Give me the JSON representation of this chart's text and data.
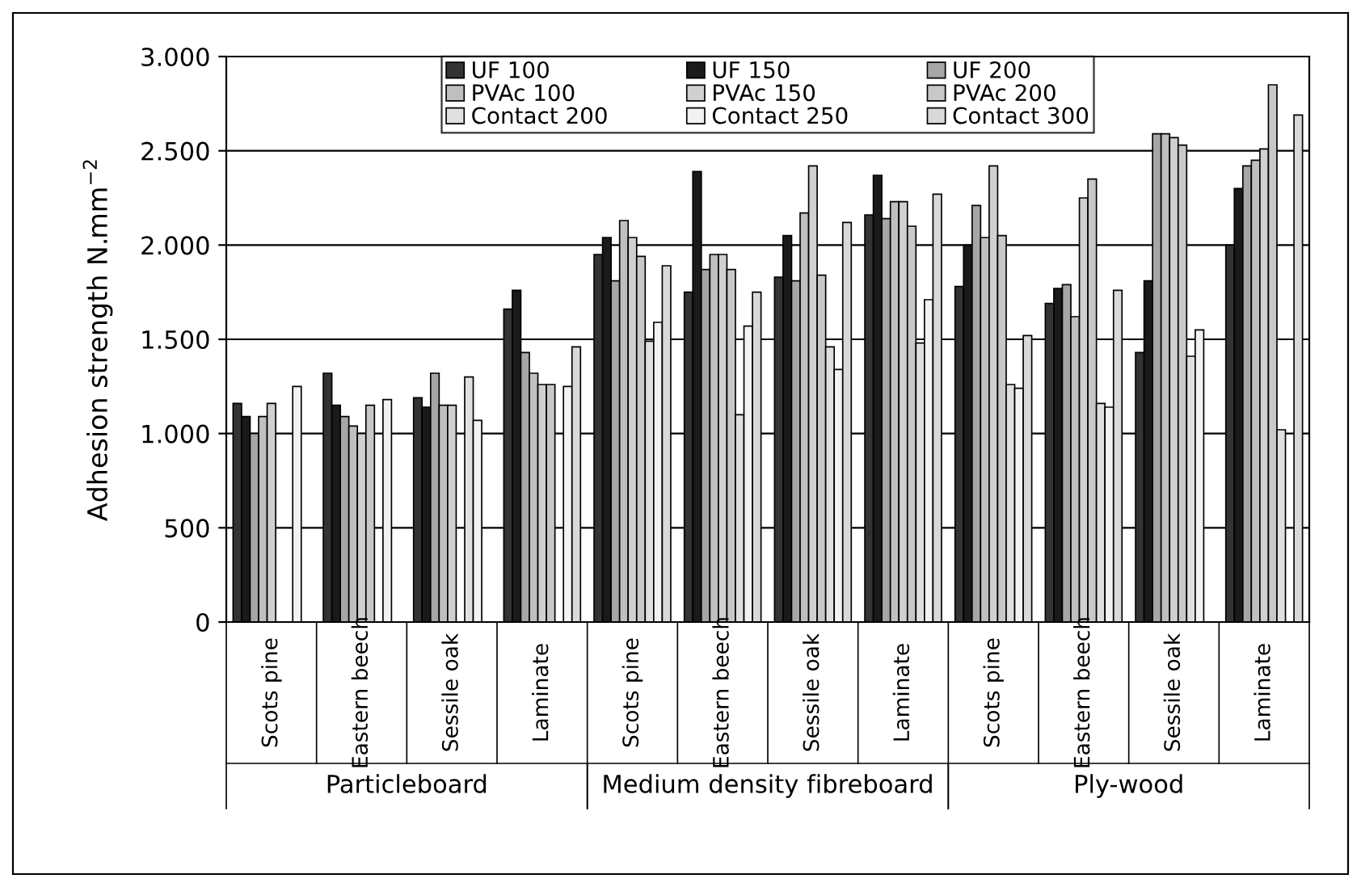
{
  "chart_data": {
    "type": "bar",
    "ylabel": "Adhesion strength N.mm$^{−2}$",
    "categories": [
      "Scots pine",
      "Eastern beech",
      "Sessile oak",
      "Laminate",
      "Scots pine",
      "Eastern beech",
      "Sessile oak",
      "Laminate",
      "Scots pine",
      "Eastern beech",
      "Sessile oak",
      "Laminate"
    ],
    "series": [
      {
        "name": "UF 100",
        "color": "#333333",
        "values": [
          1160,
          1320,
          1190,
          1660,
          1950,
          1750,
          1830,
          2160,
          1780,
          1690,
          1430,
          2000
        ]
      },
      {
        "name": "UF 150",
        "color": "#1a1a1a",
        "values": [
          1090,
          1150,
          1140,
          1760,
          2040,
          2390,
          2050,
          2370,
          2000,
          1770,
          1810,
          2300
        ]
      },
      {
        "name": "UF 200",
        "color": "#a6a6a6",
        "values": [
          1000,
          1090,
          1320,
          1430,
          1810,
          1870,
          1810,
          2140,
          2210,
          1790,
          2590,
          2420
        ]
      },
      {
        "name": "PVAc 100",
        "color": "#bfbfbf",
        "values": [
          1090,
          1040,
          1150,
          1320,
          2130,
          1950,
          2170,
          2230,
          2040,
          1620,
          2590,
          2450
        ]
      },
      {
        "name": "PVAc 150",
        "color": "#d0d0d0",
        "values": [
          1160,
          1000,
          1150,
          1260,
          2040,
          1950,
          2420,
          2230,
          2420,
          2250,
          2570,
          2510
        ]
      },
      {
        "name": "PVAc 200",
        "color": "#c8c8c8",
        "values": [
          null,
          1150,
          null,
          1260,
          1940,
          1870,
          1840,
          2100,
          2050,
          2350,
          2530,
          2850
        ]
      },
      {
        "name": "Contact 200",
        "color": "#e0e0e0",
        "values": [
          null,
          null,
          1300,
          null,
          1490,
          1100,
          1460,
          1480,
          1260,
          1160,
          1410,
          1020
        ]
      },
      {
        "name": "Contact 250",
        "color": "#f2f2f2",
        "values": [
          1250,
          1180,
          1070,
          1250,
          1590,
          1570,
          1340,
          1710,
          1240,
          1140,
          1550,
          null
        ]
      },
      {
        "name": "Contact 300",
        "color": "#d9d9d9",
        "values": [
          null,
          null,
          null,
          1460,
          1890,
          1750,
          2120,
          2270,
          1520,
          1760,
          null,
          2690
        ]
      }
    ],
    "ylim": [
      0,
      3000
    ],
    "yticks": [
      0,
      {
        "value": 500,
        "label": "500"
      },
      {
        "value": 1000,
        "label": "1.000"
      },
      {
        "value": 1500,
        "label": "1.500"
      },
      {
        "value": 2000,
        "label": "2.000"
      },
      {
        "value": 2500,
        "label": "2.500"
      },
      {
        "value": 3000,
        "label": "3.000"
      }
    ],
    "grid": "y",
    "legend": "top",
    "annotations": [
      "Particleboard",
      "Medium density fibreboard",
      "Ply-wood"
    ]
  }
}
